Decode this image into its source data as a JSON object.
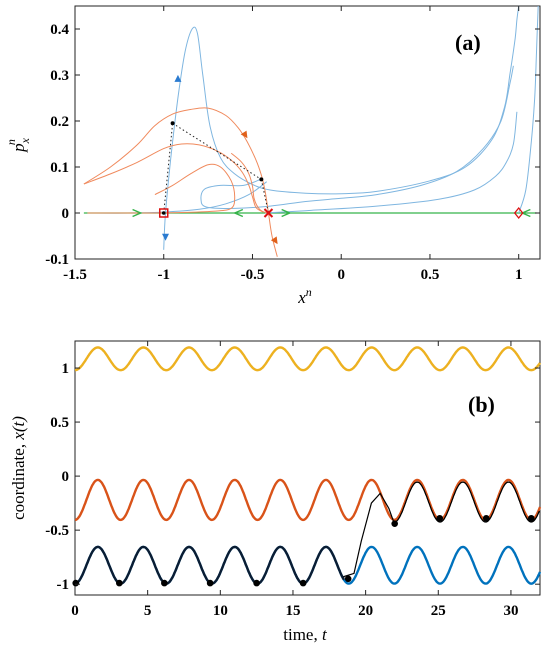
{
  "chart_data": [
    {
      "panel": "(a)",
      "type": "line",
      "xlabel_base": "x",
      "xlabel_sup": "n",
      "ylabel_base": "p",
      "ylabel_sub": "x",
      "ylabel_sup": "n",
      "xlim": [
        -1.5,
        1.12
      ],
      "ylim": [
        -0.1,
        0.45
      ],
      "xticks": [
        -1.5,
        -1,
        -0.5,
        0,
        0.5,
        1
      ],
      "xtick_labels": [
        "-1.5",
        "-1",
        "-0.5",
        "0",
        "0.5",
        "1"
      ],
      "yticks": [
        -0.1,
        0,
        0.1,
        0.2,
        0.3,
        0.4
      ],
      "ytick_labels": [
        "-0.1",
        "0",
        "0.1",
        "0.2",
        "0.3",
        "0.4"
      ],
      "grid": false,
      "colors": {
        "blue": "#7fb6e0",
        "orange": "#f08a5d",
        "green": "#36b34a",
        "red": "#dd1111",
        "blue_arrow": "#2b7bd0",
        "orange_arrow": "#e0601a"
      },
      "series": [
        {
          "color": "blue",
          "points": [
            [
              -1.0,
              -0.08
            ],
            [
              -0.99,
              0.0
            ],
            [
              -0.96,
              0.12
            ],
            [
              -0.92,
              0.25
            ],
            [
              -0.88,
              0.35
            ],
            [
              -0.84,
              0.4
            ],
            [
              -0.81,
              0.39
            ],
            [
              -0.78,
              0.3
            ],
            [
              -0.74,
              0.19
            ],
            [
              -0.68,
              0.12
            ],
            [
              -0.6,
              0.085
            ],
            [
              -0.5,
              0.062
            ],
            [
              -0.4,
              0.05
            ],
            [
              -0.2,
              0.043
            ],
            [
              0.0,
              0.042
            ],
            [
              0.2,
              0.047
            ],
            [
              0.5,
              0.07
            ],
            [
              0.7,
              0.1
            ],
            [
              0.85,
              0.16
            ],
            [
              0.92,
              0.23
            ],
            [
              0.95,
              0.3
            ],
            [
              0.98,
              0.38
            ],
            [
              0.99,
              0.42
            ],
            [
              1.0,
              0.45
            ]
          ]
        },
        {
          "color": "blue",
          "points": [
            [
              -0.45,
              0.074
            ],
            [
              -0.55,
              0.06
            ],
            [
              -0.68,
              0.06
            ],
            [
              -0.77,
              0.052
            ],
            [
              -0.79,
              0.03
            ],
            [
              -0.76,
              0.013
            ],
            [
              -0.6,
              0.01
            ],
            [
              -0.4,
              0.015
            ],
            [
              -0.2,
              0.025
            ],
            [
              0.0,
              0.032
            ],
            [
              0.2,
              0.04
            ],
            [
              0.45,
              0.06
            ],
            [
              0.65,
              0.09
            ],
            [
              0.8,
              0.14
            ],
            [
              0.9,
              0.2
            ],
            [
              0.95,
              0.28
            ],
            [
              0.97,
              0.32
            ]
          ]
        },
        {
          "color": "blue",
          "points": [
            [
              -0.42,
              0.068
            ],
            [
              -0.52,
              0.04
            ],
            [
              -0.65,
              0.02
            ],
            [
              -0.8,
              0.008
            ],
            [
              -1.0,
              0.002
            ],
            [
              -1.2,
              0.0
            ],
            [
              -1.43,
              0.0
            ]
          ]
        },
        {
          "color": "blue",
          "points": [
            [
              -0.43,
              0.0
            ],
            [
              -0.2,
              0.005
            ],
            [
              0.2,
              0.015
            ],
            [
              0.55,
              0.03
            ],
            [
              0.75,
              0.05
            ],
            [
              0.87,
              0.08
            ],
            [
              0.93,
              0.11
            ],
            [
              0.97,
              0.15
            ],
            [
              0.99,
              0.22
            ]
          ]
        },
        {
          "color": "blue",
          "points": [
            [
              1.0,
              0.0
            ],
            [
              1.04,
              0.05
            ],
            [
              1.07,
              0.15
            ],
            [
              1.09,
              0.25
            ],
            [
              1.1,
              0.35
            ],
            [
              1.11,
              0.45
            ]
          ]
        },
        {
          "color": "orange",
          "points": [
            [
              -1.45,
              0.063
            ],
            [
              -1.3,
              0.1
            ],
            [
              -1.15,
              0.148
            ],
            [
              -1.05,
              0.19
            ],
            [
              -0.95,
              0.215
            ],
            [
              -0.85,
              0.225
            ],
            [
              -0.75,
              0.228
            ],
            [
              -0.65,
              0.212
            ],
            [
              -0.58,
              0.185
            ],
            [
              -0.53,
              0.155
            ],
            [
              -0.48,
              0.115
            ],
            [
              -0.45,
              0.082
            ],
            [
              -0.43,
              0.05
            ],
            [
              -0.41,
              0.0
            ],
            [
              -0.39,
              -0.05
            ],
            [
              -0.36,
              -0.095
            ]
          ]
        },
        {
          "color": "orange",
          "points": [
            [
              -1.45,
              0.063
            ],
            [
              -1.3,
              0.085
            ],
            [
              -1.15,
              0.11
            ],
            [
              -1.0,
              0.14
            ],
            [
              -0.9,
              0.15
            ],
            [
              -0.8,
              0.148
            ],
            [
              -0.7,
              0.135
            ],
            [
              -0.62,
              0.115
            ],
            [
              -0.56,
              0.09
            ],
            [
              -0.52,
              0.06
            ],
            [
              -0.5,
              0.035
            ],
            [
              -0.48,
              0.012
            ],
            [
              -0.44,
              0.002
            ]
          ]
        },
        {
          "color": "orange",
          "points": [
            [
              -1.05,
              0.04
            ],
            [
              -0.95,
              0.06
            ],
            [
              -0.85,
              0.085
            ],
            [
              -0.75,
              0.105
            ],
            [
              -0.68,
              0.1
            ],
            [
              -0.62,
              0.07
            ],
            [
              -0.6,
              0.035
            ],
            [
              -0.62,
              0.01
            ],
            [
              -0.72,
              0.004
            ],
            [
              -0.9,
              0.001
            ],
            [
              -1.1,
              0.0
            ],
            [
              -1.43,
              0.0
            ]
          ]
        },
        {
          "color": "orange",
          "points": [
            [
              -0.62,
              0.13
            ],
            [
              -0.56,
              0.11
            ],
            [
              -0.52,
              0.085
            ],
            [
              -0.5,
              0.058
            ],
            [
              -0.49,
              0.03
            ],
            [
              -0.46,
              0.008
            ],
            [
              -0.42,
              0.0
            ]
          ]
        }
      ],
      "green_line": {
        "y": 0,
        "x_from": -1.45,
        "x_to": 1.1
      },
      "dotted_paths": [
        [
          [
            -1.0,
            0.0
          ],
          [
            -0.95,
            0.195
          ]
        ],
        [
          [
            -0.95,
            0.195
          ],
          [
            -0.45,
            0.073
          ]
        ],
        [
          [
            -0.45,
            0.073
          ],
          [
            -0.41,
            0.0
          ]
        ]
      ],
      "dots": [
        [
          -0.95,
          0.195
        ],
        [
          -0.45,
          0.073
        ]
      ],
      "markers": [
        {
          "kind": "open-square",
          "x": -1.0,
          "y": 0.0
        },
        {
          "kind": "x-cross",
          "x": -0.41,
          "y": 0.0
        },
        {
          "kind": "open-diamond",
          "x": 1.0,
          "y": 0.0
        }
      ],
      "arrows": [
        {
          "color": "blue_arrow",
          "x": -0.92,
          "y": 0.285,
          "dir": "up"
        },
        {
          "color": "blue_arrow",
          "x": -0.99,
          "y": -0.045,
          "dir": "down"
        },
        {
          "color": "orange_arrow",
          "x": -0.55,
          "y": 0.175,
          "dir": "down-right"
        },
        {
          "color": "orange_arrow",
          "x": -0.38,
          "y": -0.055,
          "dir": "down-right"
        },
        {
          "color": "green",
          "x": -1.17,
          "y": 0.0,
          "dir": "right"
        },
        {
          "color": "green",
          "x": -0.56,
          "y": 0.0,
          "dir": "left"
        },
        {
          "color": "green",
          "x": -0.33,
          "y": 0.0,
          "dir": "right"
        },
        {
          "color": "green",
          "x": 1.06,
          "y": 0.0,
          "dir": "left"
        }
      ]
    },
    {
      "panel": "(b)",
      "type": "line",
      "xlabel": "time, ",
      "xlabel_var": "t",
      "ylabel": "coordinate, ",
      "ylabel_var": "x(t)",
      "xlim": [
        0,
        32
      ],
      "ylim": [
        -1.1,
        1.25
      ],
      "xticks": [
        0,
        5,
        10,
        15,
        20,
        25,
        30
      ],
      "xtick_labels": [
        "0",
        "5",
        "10",
        "15",
        "20",
        "25",
        "30"
      ],
      "yticks": [
        -1,
        -0.5,
        0,
        0.5,
        1
      ],
      "ytick_labels": [
        "-1",
        "-0.5",
        "0",
        "0.5",
        "1"
      ],
      "grid": false,
      "period": 3.14,
      "series": [
        {
          "color": "#edb120",
          "center": 1.085,
          "amplitude": 0.105,
          "phase_min_t": 0.0
        },
        {
          "color": "#d95319",
          "center": -0.22,
          "amplitude": 0.185,
          "phase_min_t": 0.0
        },
        {
          "color": "#0072bd",
          "center": -0.825,
          "amplitude": 0.17,
          "phase_min_t": 0.0
        },
        {
          "color": "#000000",
          "segments": [
            {
              "t_from": 0,
              "t_to": 19.05,
              "center": -0.825,
              "amplitude": 0.17
            },
            {
              "t_from": 19.05,
              "t_to": 32,
              "center": -0.22,
              "amplitude": 0.185
            }
          ],
          "transition_points": [
            [
              18.5,
              -0.93
            ],
            [
              19.2,
              -0.9
            ],
            [
              19.7,
              -0.6
            ],
            [
              20.4,
              -0.25
            ],
            [
              21.0,
              -0.16
            ],
            [
              21.6,
              -0.3
            ],
            [
              22.0,
              -0.45
            ]
          ]
        }
      ],
      "markers": [
        [
          0.05,
          -0.99
        ],
        [
          3.05,
          -0.99
        ],
        [
          6.15,
          -0.99
        ],
        [
          9.3,
          -0.99
        ],
        [
          12.5,
          -0.99
        ],
        [
          15.7,
          -0.99
        ],
        [
          18.8,
          -0.95
        ],
        [
          22.0,
          -0.44
        ],
        [
          25.1,
          -0.39
        ],
        [
          28.3,
          -0.39
        ],
        [
          31.4,
          -0.39
        ]
      ]
    }
  ]
}
